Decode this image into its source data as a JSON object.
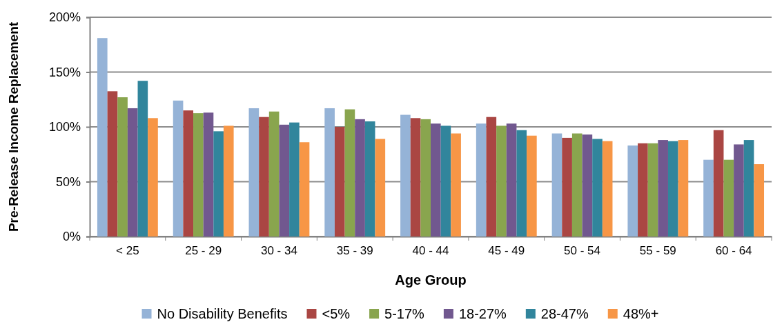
{
  "chart_data": {
    "type": "bar",
    "xlabel": "Age Group",
    "ylabel": "Pre-Release Income Replacement",
    "categories": [
      "< 25",
      "25 - 29",
      "30 - 34",
      "35 - 39",
      "40 - 44",
      "45 - 49",
      "50 - 54",
      "55 - 59",
      "60 - 64"
    ],
    "series": [
      {
        "name": "No Disability Benefits",
        "color": "#95b3d7",
        "values": [
          181,
          124,
          117,
          117,
          111,
          103,
          94,
          83,
          70
        ]
      },
      {
        "name": "<5%",
        "color": "#aa4643",
        "values": [
          132.5,
          115,
          109,
          100,
          108,
          109,
          90,
          85,
          97
        ]
      },
      {
        "name": "5-17%",
        "color": "#89a54e",
        "values": [
          127,
          112.5,
          114,
          116,
          107,
          101,
          94,
          85,
          70
        ]
      },
      {
        "name": "18-27%",
        "color": "#71588f",
        "values": [
          117,
          113,
          102,
          107,
          103,
          103,
          93,
          88,
          84
        ]
      },
      {
        "name": "28-47%",
        "color": "#31859c",
        "values": [
          142,
          96,
          104,
          105,
          101,
          97,
          89,
          87,
          88
        ]
      },
      {
        "name": "48%+",
        "color": "#f79646",
        "values": [
          108,
          101,
          86,
          89,
          94,
          92,
          87,
          88,
          66
        ]
      }
    ],
    "ylim": [
      0,
      200
    ],
    "yticks": [
      {
        "value": 0,
        "label": "0%"
      },
      {
        "value": 50,
        "label": "50%"
      },
      {
        "value": 100,
        "label": "100%"
      },
      {
        "value": 150,
        "label": "150%"
      },
      {
        "value": 200,
        "label": "200%"
      }
    ],
    "grid": "y",
    "legend": "bottom"
  }
}
